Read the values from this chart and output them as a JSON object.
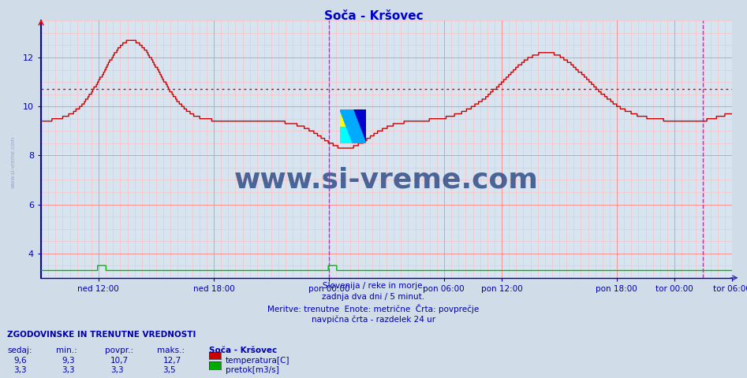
{
  "title": "Soča - Kršovec",
  "title_color": "#0000cc",
  "bg_color": "#d0dce8",
  "plot_bg_color": "#d8e4f0",
  "grid_color_major": "#ff8888",
  "grid_color_minor": "#ffbbbb",
  "tick_color": "#0000aa",
  "avg_line_value": 10.7,
  "avg_line_color": "#cc0000",
  "temp_line_color": "#cc0000",
  "flow_line_color": "#00bb00",
  "magenta_vline1": 0.417,
  "magenta_vline2": 0.958,
  "x_tick_labels": [
    "ned 12:00",
    "ned 18:00",
    "pon 00:00",
    "pon 06:00",
    "pon 12:00",
    "pon 18:00",
    "tor 00:00",
    "tor 06:00"
  ],
  "x_tick_pos": [
    0.083,
    0.25,
    0.417,
    0.583,
    0.667,
    0.833,
    0.917,
    1.0
  ],
  "ylim": [
    3.0,
    13.5
  ],
  "y_ticks": [
    4,
    6,
    8,
    10,
    12
  ],
  "watermark": "www.si-vreme.com",
  "watermark_color": "#1a3a7a",
  "footer_lines": [
    "Slovenija / reke in morje.",
    "zadnja dva dni / 5 minut.",
    "Meritve: trenutne  Enote: metrične  Črta: povprečje",
    "navpična črta - razdelek 24 ur"
  ],
  "footer_color": "#0000aa",
  "legend_title": "Soča - Kršovec",
  "table_header": "ZGODOVINSKE IN TRENUTNE VREDNOSTI",
  "table_cols": [
    "sedaj:",
    "min.:",
    "povpr.:",
    "maks.:"
  ],
  "table_row1": [
    "9,6",
    "9,3",
    "10,7",
    "12,7"
  ],
  "table_row2": [
    "3,3",
    "3,3",
    "3,3",
    "3,5"
  ],
  "table_color": "#0000aa",
  "temp_color_swatch": "#cc0000",
  "flow_color_swatch": "#00aa00",
  "temp_label": "temperatura[C]",
  "flow_label": "pretok[m3/s]",
  "left_watermark": "www.si-vreme.com"
}
